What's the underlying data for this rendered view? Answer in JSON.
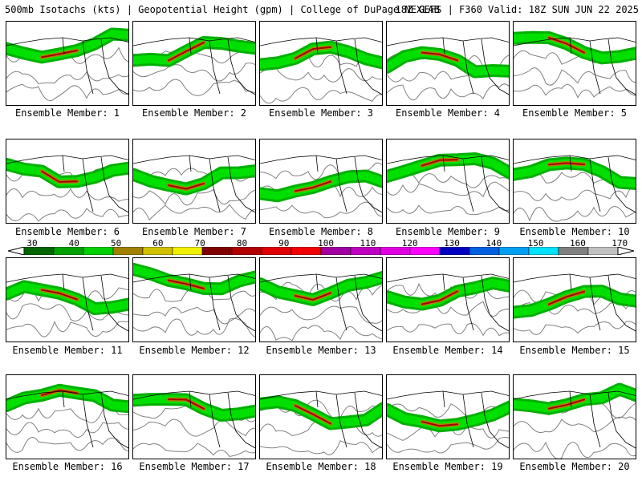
{
  "header": {
    "left": "500mb Isotachs (kts) | Geopotential Height (gpm) | College of DuPage NEXLAB",
    "right": "18Z GEFS | F360 Valid: 18Z SUN JUN 22 2025"
  },
  "panels": [
    {
      "caption": "Ensemble Member: 1"
    },
    {
      "caption": "Ensemble Member: 2"
    },
    {
      "caption": "Ensemble Member: 3"
    },
    {
      "caption": "Ensemble Member: 4"
    },
    {
      "caption": "Ensemble Member: 5"
    },
    {
      "caption": "Ensemble Member: 6"
    },
    {
      "caption": "Ensemble Member: 7"
    },
    {
      "caption": "Ensemble Member: 8"
    },
    {
      "caption": "Ensemble Member: 9"
    },
    {
      "caption": "Ensemble Member: 10"
    },
    {
      "caption": "Ensemble Member: 11"
    },
    {
      "caption": "Ensemble Member: 12"
    },
    {
      "caption": "Ensemble Member: 13"
    },
    {
      "caption": "Ensemble Member: 14"
    },
    {
      "caption": "Ensemble Member: 15"
    },
    {
      "caption": "Ensemble Member: 16"
    },
    {
      "caption": "Ensemble Member: 17"
    },
    {
      "caption": "Ensemble Member: 18"
    },
    {
      "caption": "Ensemble Member: 19"
    },
    {
      "caption": "Ensemble Member: 20"
    }
  ],
  "colorbar": {
    "labels": [
      "30",
      "40",
      "50",
      "60",
      "70",
      "80",
      "90",
      "100",
      "110",
      "120",
      "130",
      "140",
      "150",
      "160",
      "170"
    ],
    "colors": [
      "#006400",
      "#00a000",
      "#00d000",
      "#a08000",
      "#d0c000",
      "#f0f000",
      "#800000",
      "#b00000",
      "#e00000",
      "#f00000",
      "#a000a0",
      "#c000c0",
      "#e000e0",
      "#ff00ff",
      "#0000c0",
      "#0060e0",
      "#00a0f0",
      "#00e0ff",
      "#808080",
      "#c0c0c0"
    ]
  },
  "map_colors": {
    "jet_outer": "#00b000",
    "jet_mid": "#00e000",
    "jet_core": "#b08000",
    "jet_max": "#a00000",
    "height_contour": "#808080",
    "coastline": "#000000"
  }
}
